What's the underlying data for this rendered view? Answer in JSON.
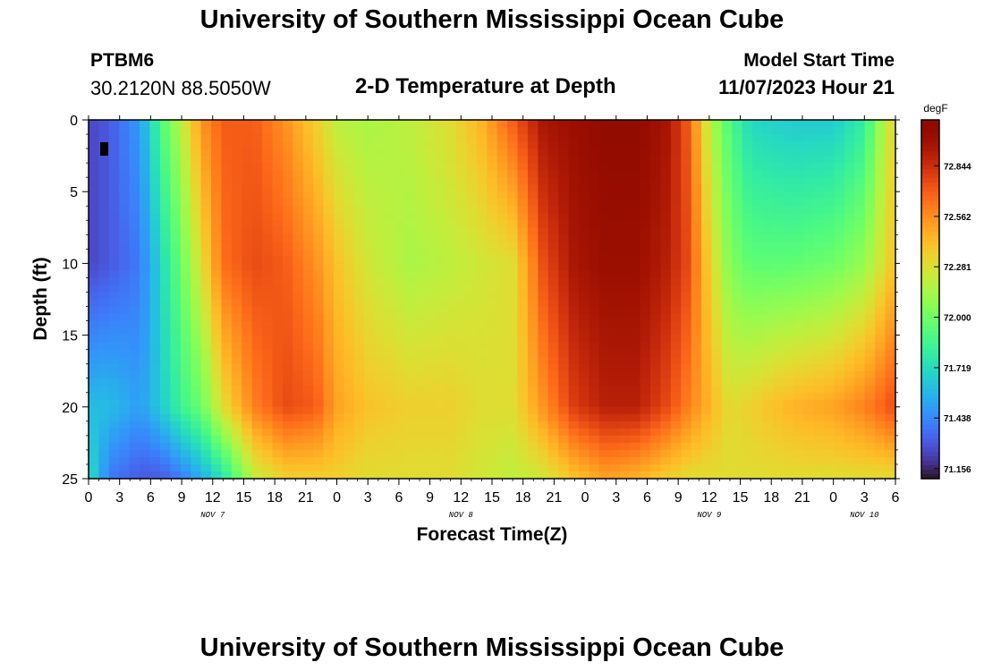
{
  "header": {
    "title": "University of Southern Mississippi Ocean Cube",
    "station_id": "PTBM6",
    "coords": "30.2120N  88.5050W",
    "plot_title": "2-D Temperature at Depth",
    "model_label": "Model Start Time",
    "model_time": "11/07/2023 Hour 21"
  },
  "footer": {
    "title": "University of Southern Mississippi Ocean Cube"
  },
  "chart_data": {
    "type": "heatmap",
    "xlabel": "Forecast Time(Z)",
    "ylabel": "Depth (ft)",
    "x_tick_labels": [
      "0",
      "3",
      "6",
      "9",
      "12",
      "15",
      "18",
      "21",
      "0",
      "3",
      "6",
      "9",
      "12",
      "15",
      "18",
      "21",
      "0",
      "3",
      "6",
      "9",
      "12",
      "15",
      "18",
      "21",
      "0",
      "3",
      "6"
    ],
    "day_labels": [
      {
        "text": "NOV 7",
        "tick_index": 4
      },
      {
        "text": "NOV 8",
        "tick_index": 12
      },
      {
        "text": "NOV 9",
        "tick_index": 20
      },
      {
        "text": "NOV 10",
        "tick_index": 25
      }
    ],
    "x_range_hours": [
      0,
      78
    ],
    "y_ticks": [
      0,
      5,
      10,
      15,
      20,
      25
    ],
    "ylim": [
      25,
      0
    ],
    "colorbar": {
      "unit": "degF",
      "ticks": [
        "72.844",
        "72.562",
        "72.281",
        "72.000",
        "71.719",
        "71.438",
        "71.156"
      ],
      "min": 71.1,
      "max": 73.1
    },
    "profiles": [
      {
        "hour": 0,
        "depth": [
          0,
          10,
          20,
          25
        ],
        "temp": [
          71.25,
          71.25,
          71.6,
          71.75
        ]
      },
      {
        "hour": 2,
        "depth": [
          0,
          10,
          20,
          25
        ],
        "temp": [
          71.3,
          71.3,
          71.6,
          71.4
        ]
      },
      {
        "hour": 5,
        "depth": [
          0,
          10,
          20,
          25
        ],
        "temp": [
          71.5,
          71.4,
          71.5,
          71.3
        ]
      },
      {
        "hour": 7,
        "depth": [
          0,
          10,
          20,
          25
        ],
        "temp": [
          71.9,
          71.7,
          71.65,
          71.3
        ]
      },
      {
        "hour": 9,
        "depth": [
          0,
          10,
          20,
          25
        ],
        "temp": [
          72.2,
          72.0,
          71.85,
          71.4
        ]
      },
      {
        "hour": 11,
        "depth": [
          0,
          10,
          20,
          25
        ],
        "temp": [
          72.55,
          72.3,
          72.0,
          71.55
        ]
      },
      {
        "hour": 13,
        "depth": [
          0,
          10,
          20,
          25
        ],
        "temp": [
          72.7,
          72.65,
          72.3,
          71.75
        ]
      },
      {
        "hour": 16,
        "depth": [
          0,
          10,
          20,
          25
        ],
        "temp": [
          72.7,
          72.75,
          72.6,
          72.2
        ]
      },
      {
        "hour": 19,
        "depth": [
          0,
          10,
          20,
          25
        ],
        "temp": [
          72.55,
          72.7,
          72.75,
          72.35
        ]
      },
      {
        "hour": 22,
        "depth": [
          0,
          10,
          20,
          25
        ],
        "temp": [
          72.35,
          72.55,
          72.7,
          72.35
        ]
      },
      {
        "hour": 24,
        "depth": [
          0,
          10,
          20,
          25
        ],
        "temp": [
          72.2,
          72.4,
          72.5,
          72.35
        ]
      },
      {
        "hour": 27,
        "depth": [
          0,
          10,
          20,
          25
        ],
        "temp": [
          72.15,
          72.25,
          72.4,
          72.3
        ]
      },
      {
        "hour": 31,
        "depth": [
          0,
          10,
          20,
          25
        ],
        "temp": [
          72.2,
          72.15,
          72.35,
          72.3
        ]
      },
      {
        "hour": 35,
        "depth": [
          0,
          10,
          20,
          25
        ],
        "temp": [
          72.3,
          72.2,
          72.35,
          72.3
        ]
      },
      {
        "hour": 38,
        "depth": [
          0,
          10,
          20,
          25
        ],
        "temp": [
          72.45,
          72.25,
          72.3,
          72.25
        ]
      },
      {
        "hour": 41,
        "depth": [
          0,
          10,
          20,
          25
        ],
        "temp": [
          72.7,
          72.3,
          72.3,
          72.2
        ]
      },
      {
        "hour": 44,
        "depth": [
          0,
          10,
          20,
          25
        ],
        "temp": [
          72.95,
          72.75,
          72.55,
          72.25
        ]
      },
      {
        "hour": 47,
        "depth": [
          0,
          10,
          20,
          25
        ],
        "temp": [
          73.0,
          72.95,
          72.8,
          72.4
        ]
      },
      {
        "hour": 50,
        "depth": [
          0,
          10,
          20,
          25
        ],
        "temp": [
          73.05,
          73.0,
          72.9,
          72.5
        ]
      },
      {
        "hour": 53,
        "depth": [
          0,
          10,
          20,
          25
        ],
        "temp": [
          73.05,
          73.0,
          72.9,
          72.45
        ]
      },
      {
        "hour": 56,
        "depth": [
          0,
          10,
          20,
          25
        ],
        "temp": [
          72.95,
          72.9,
          72.75,
          72.35
        ]
      },
      {
        "hour": 58,
        "depth": [
          0,
          10,
          20,
          25
        ],
        "temp": [
          72.7,
          72.75,
          72.6,
          72.3
        ]
      },
      {
        "hour": 60,
        "depth": [
          0,
          10,
          20,
          25
        ],
        "temp": [
          72.2,
          72.35,
          72.45,
          72.3
        ]
      },
      {
        "hour": 62,
        "depth": [
          0,
          10,
          20,
          25
        ],
        "temp": [
          71.9,
          72.05,
          72.3,
          72.3
        ]
      },
      {
        "hour": 64,
        "depth": [
          0,
          10,
          20,
          25
        ],
        "temp": [
          71.7,
          71.95,
          72.35,
          72.3
        ]
      },
      {
        "hour": 68,
        "depth": [
          0,
          10,
          20,
          25
        ],
        "temp": [
          71.65,
          71.95,
          72.45,
          72.3
        ]
      },
      {
        "hour": 72,
        "depth": [
          0,
          10,
          20,
          25
        ],
        "temp": [
          71.65,
          72.0,
          72.5,
          72.3
        ]
      },
      {
        "hour": 75,
        "depth": [
          0,
          10,
          20,
          25
        ],
        "temp": [
          71.8,
          72.1,
          72.6,
          72.3
        ]
      },
      {
        "hour": 77,
        "depth": [
          0,
          10,
          20,
          25
        ],
        "temp": [
          72.2,
          72.3,
          72.7,
          72.3
        ]
      },
      {
        "hour": 78,
        "depth": [
          0,
          10,
          20,
          25
        ],
        "temp": [
          72.35,
          72.4,
          72.75,
          72.3
        ]
      }
    ]
  }
}
